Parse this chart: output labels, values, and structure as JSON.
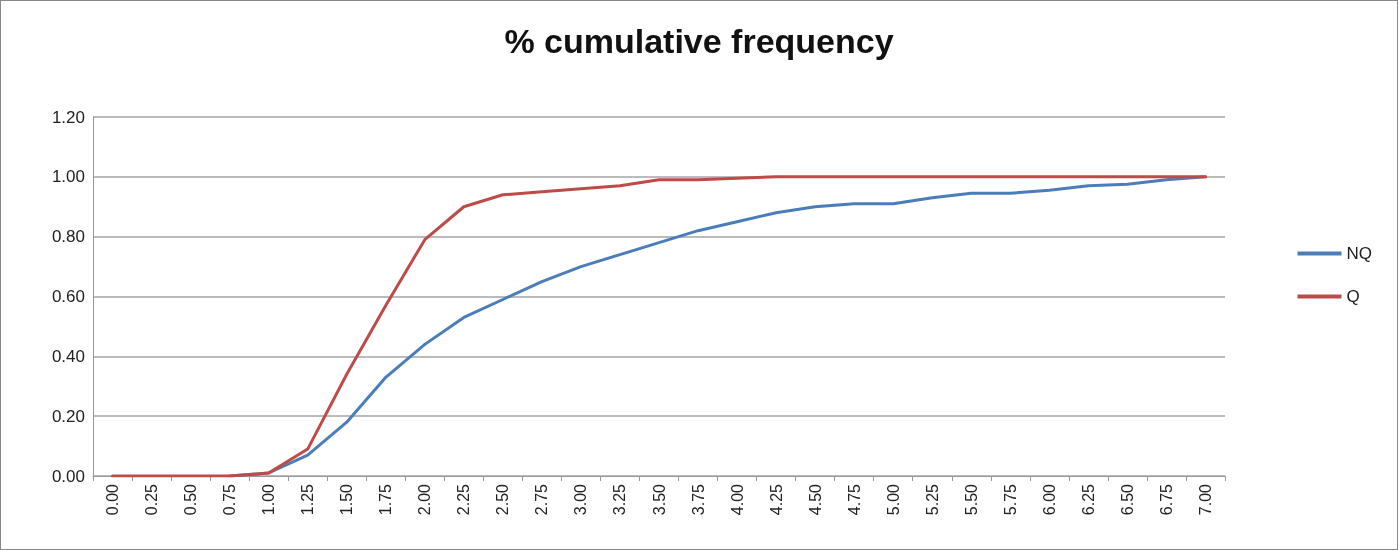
{
  "chart_data": {
    "type": "line",
    "title": "% cumulative frequency",
    "categories": [
      "0.00",
      "0.25",
      "0.50",
      "0.75",
      "1.00",
      "1.25",
      "1.50",
      "1.75",
      "2.00",
      "2.25",
      "2.50",
      "2.75",
      "3.00",
      "3.25",
      "3.50",
      "3.75",
      "4.00",
      "4.25",
      "4.50",
      "4.75",
      "5.00",
      "5.25",
      "5.50",
      "5.75",
      "6.00",
      "6.25",
      "6.50",
      "6.75",
      "7.00"
    ],
    "series": [
      {
        "name": "NQ",
        "color": "#4a7ebb",
        "values": [
          null,
          null,
          null,
          0,
          0.01,
          0.07,
          0.18,
          0.33,
          0.44,
          0.53,
          0.59,
          0.65,
          0.7,
          0.74,
          0.78,
          0.82,
          0.85,
          0.88,
          0.9,
          0.91,
          0.91,
          0.93,
          0.945,
          0.945,
          0.955,
          0.97,
          0.975,
          0.99,
          1.0
        ]
      },
      {
        "name": "Q",
        "color": "#be4b48",
        "values": [
          0,
          0,
          0,
          0,
          0.01,
          0.09,
          0.34,
          0.57,
          0.79,
          0.9,
          0.94,
          0.95,
          0.96,
          0.97,
          0.99,
          0.99,
          0.995,
          1.0,
          1.0,
          1.0,
          1.0,
          1.0,
          1.0,
          1.0,
          1.0,
          1.0,
          1.0,
          1.0,
          1.0
        ]
      }
    ],
    "ylim": [
      0,
      1.2
    ],
    "yticks": [
      {
        "value": 0,
        "label": "0.00"
      },
      {
        "value": 0.2,
        "label": "0.20"
      },
      {
        "value": 0.4,
        "label": "0.40"
      },
      {
        "value": 0.6,
        "label": "0.60"
      },
      {
        "value": 0.8,
        "label": "0.80"
      },
      {
        "value": 1,
        "label": "1.00"
      },
      {
        "value": 1.2,
        "label": "1.20"
      }
    ],
    "grid": "y",
    "legend": "right",
    "marker": "none",
    "line_style": "solid"
  }
}
